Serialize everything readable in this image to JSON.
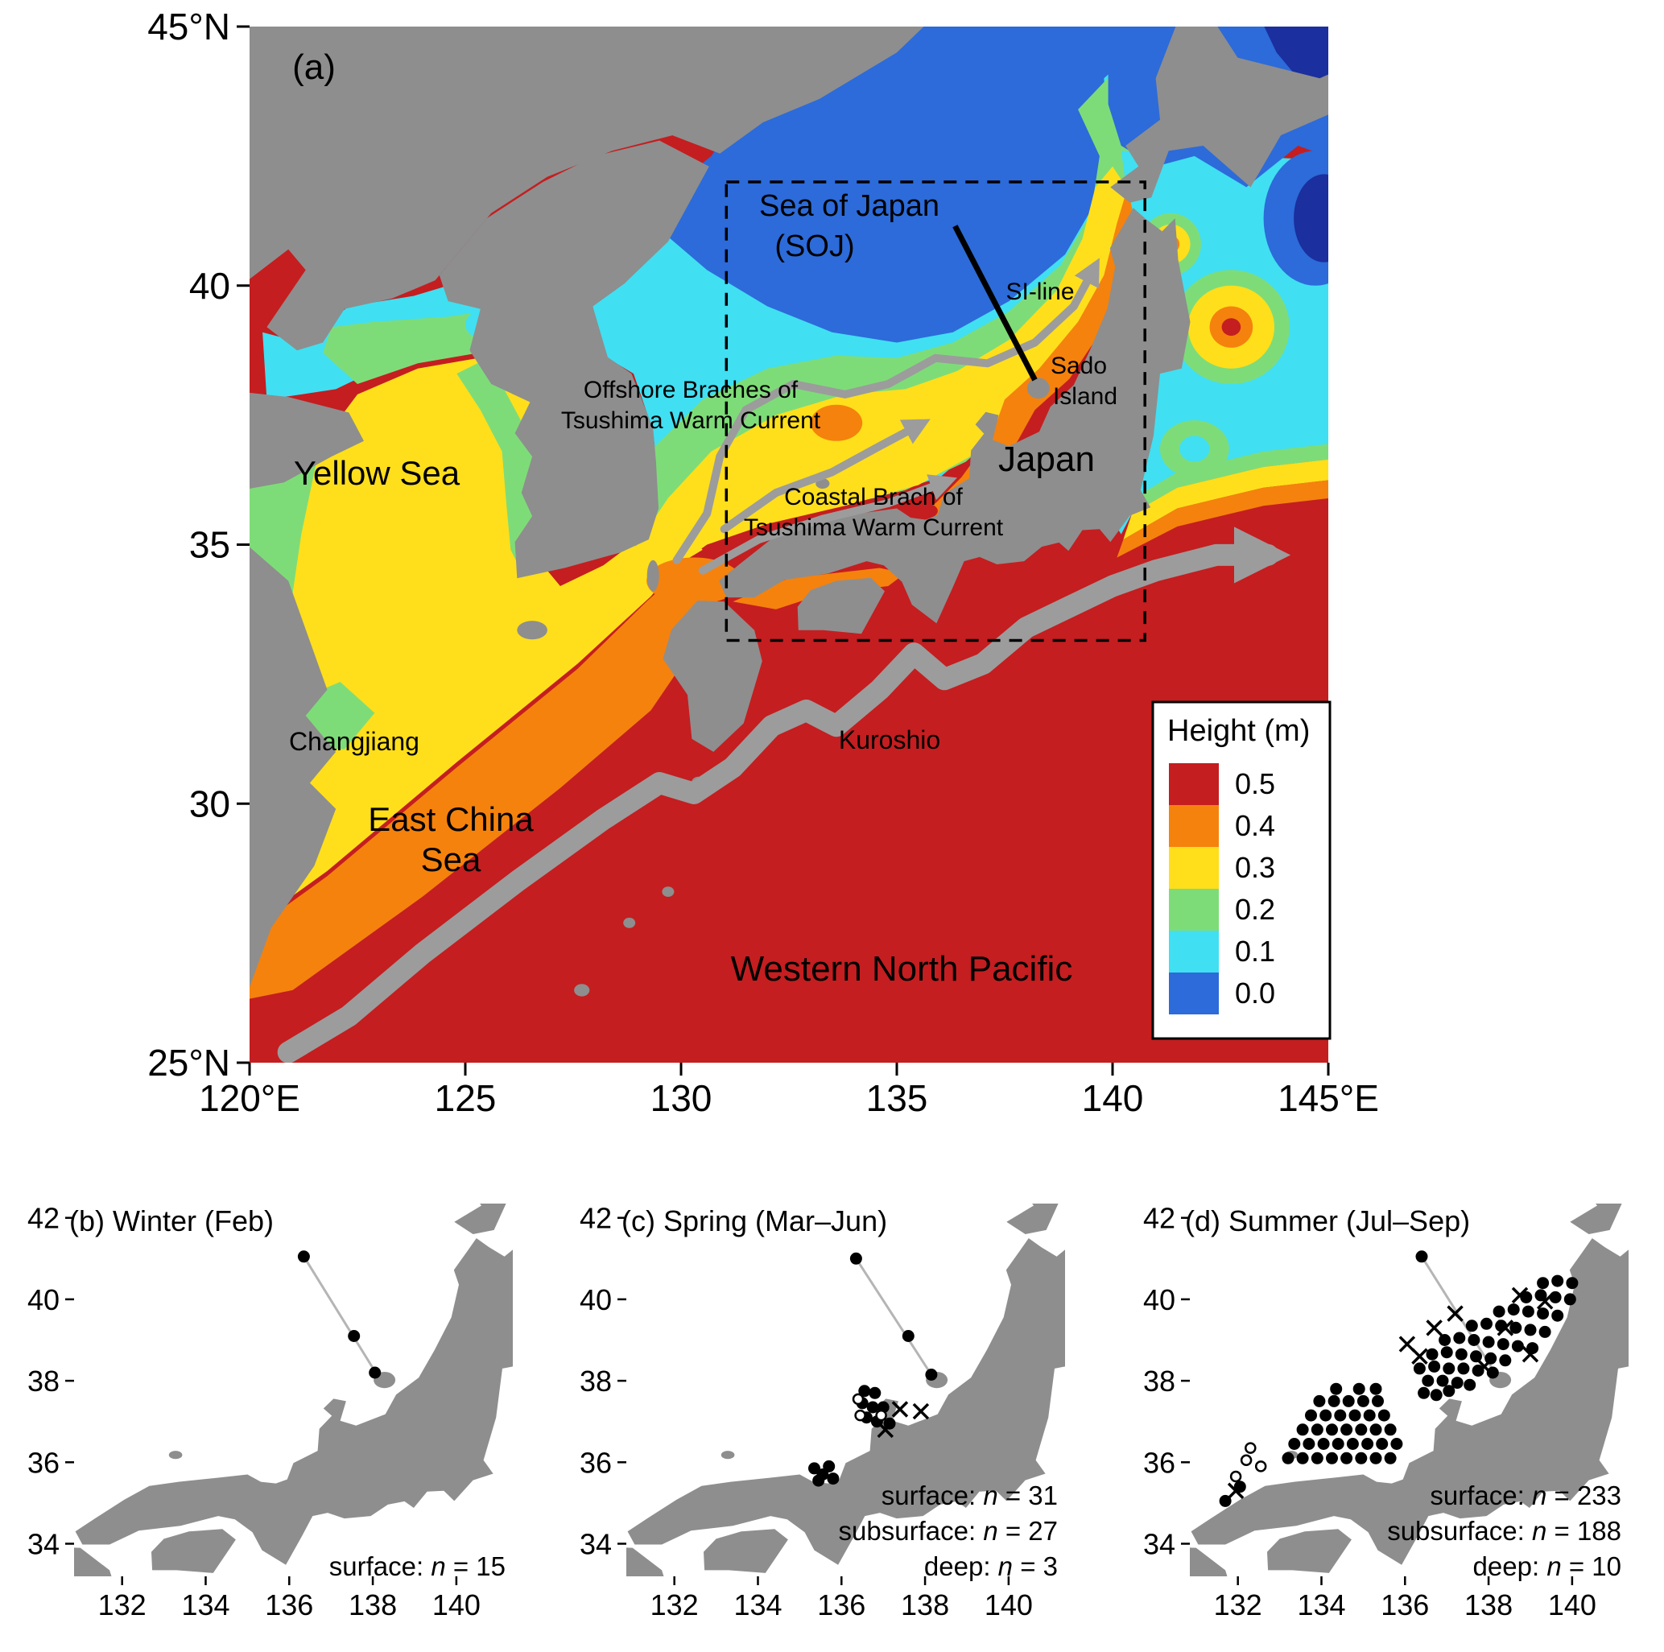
{
  "figure_type": "Oceanographic map figure: sea surface height and sampling stations around Japan",
  "panel_a": {
    "label": "(a)",
    "x_ticks": [
      "120°E",
      "125",
      "130",
      "135",
      "140",
      "145°E"
    ],
    "y_ticks": [
      "45°N",
      "40",
      "35",
      "30",
      "25°N"
    ],
    "annotations": {
      "sea_of_japan_line1": "Sea of Japan",
      "sea_of_japan_line2": "(SOJ)",
      "si_line": "SI-line",
      "sado_line1": "Sado",
      "sado_line2": "Island",
      "japan": "Japan",
      "offshore_line1": "Offshore Braches of",
      "offshore_line2": "Tsushima Warm Current",
      "coastal_line1": "Coastal Brach of",
      "coastal_line2": "Tsushima Warm Current",
      "yellow_sea": "Yellow Sea",
      "changjiang": "Changjiang",
      "east_china_line1": "East China",
      "east_china_line2": "Sea",
      "kuroshio": "Kuroshio",
      "western_north_pacific": "Western North Pacific"
    },
    "legend": {
      "title": "Height (m)",
      "entries": [
        {
          "label": "0.5",
          "color": "#C41E20"
        },
        {
          "label": "0.4",
          "color": "#F5820D"
        },
        {
          "label": "0.3",
          "color": "#FFDF1B"
        },
        {
          "label": "0.2",
          "color": "#7EDC78"
        },
        {
          "label": "0.1",
          "color": "#41DFF2"
        },
        {
          "label": "0.0",
          "color": "#2C6BD9"
        }
      ]
    }
  },
  "colors": {
    "land": "#8E8E8E",
    "current": "#9C9C9C",
    "deep_blue": "#1B2F9E"
  },
  "symbols": {
    "n": "n"
  },
  "panels_small": [
    {
      "id": "b",
      "title": "(b) Winter (Feb)",
      "stats": [
        {
          "label": "surface:",
          "value": "= 15"
        }
      ]
    },
    {
      "id": "c",
      "title": "(c) Spring (Mar–Jun)",
      "stats": [
        {
          "label": "surface:",
          "value": "= 31"
        },
        {
          "label": "subsurface:",
          "value": "= 27"
        },
        {
          "label": "deep:",
          "value": "= 3"
        }
      ]
    },
    {
      "id": "d",
      "title": "(d) Summer (Jul–Sep)",
      "stats": [
        {
          "label": "surface:",
          "value": "= 233"
        },
        {
          "label": "subsurface:",
          "value": "= 188"
        },
        {
          "label": "deep:",
          "value": "= 10"
        }
      ]
    }
  ],
  "chart_data": [
    {
      "panel": "a",
      "type": "heatmap",
      "title": "Mean sea surface height around Japan",
      "variable": "Height (m)",
      "lon_range": [
        120,
        145
      ],
      "lat_range": [
        25,
        45
      ],
      "lon_ticks": [
        120,
        125,
        130,
        135,
        140,
        145
      ],
      "lat_ticks": [
        45,
        40,
        35,
        30,
        25
      ],
      "colorbar": {
        "title": "Height (m)",
        "levels": [
          0.5,
          0.4,
          0.3,
          0.2,
          0.1,
          0.0
        ]
      },
      "regions": [
        "Sea of Japan (SOJ)",
        "Yellow Sea",
        "East China Sea",
        "Western North Pacific"
      ],
      "currents": [
        "Kuroshio",
        "Offshore Braches of Tsushima Warm Current",
        "Coastal Brach of Tsushima Warm Current"
      ],
      "marks": [
        "SI-line transect",
        "Sado Island",
        "Japan",
        "Changjiang",
        "dashed study-area box 131-141E 33-42N"
      ]
    },
    {
      "panel": "b",
      "type": "scatter",
      "season": "Winter (Feb)",
      "counts": {
        "surface": 15
      },
      "x_ticks": [
        132,
        134,
        136,
        138,
        140
      ],
      "y_ticks": [
        42,
        40,
        38,
        36,
        34
      ],
      "transect": [
        [
          136.35,
          41.05
        ],
        [
          138.1,
          38.15
        ]
      ],
      "stations": {
        "surface": [
          [
            136.35,
            41.05
          ],
          [
            137.55,
            39.1
          ],
          [
            138.05,
            38.2
          ]
        ],
        "subsurface": [],
        "deep": []
      }
    },
    {
      "panel": "c",
      "type": "scatter",
      "season": "Spring (Mar–Jun)",
      "counts": {
        "surface": 31,
        "subsurface": 27,
        "deep": 3
      },
      "x_ticks": [
        132,
        134,
        136,
        138,
        140
      ],
      "y_ticks": [
        42,
        40,
        38,
        36,
        34
      ],
      "transect": [
        [
          136.35,
          41.0
        ],
        [
          138.15,
          38.15
        ]
      ],
      "stations": {
        "surface": [
          [
            136.35,
            41.0
          ],
          [
            137.6,
            39.1
          ],
          [
            138.15,
            38.15
          ],
          [
            136.55,
            37.75
          ],
          [
            136.8,
            37.7
          ],
          [
            136.5,
            37.45
          ],
          [
            136.75,
            37.35
          ],
          [
            137.0,
            37.35
          ],
          [
            136.6,
            37.1
          ],
          [
            136.85,
            37.0
          ],
          [
            137.15,
            36.95
          ],
          [
            135.35,
            35.85
          ],
          [
            135.55,
            35.7
          ],
          [
            135.7,
            35.9
          ],
          [
            135.8,
            35.6
          ],
          [
            135.45,
            35.55
          ]
        ],
        "subsurface": [
          [
            136.4,
            37.55
          ],
          [
            136.45,
            37.15
          ],
          [
            136.95,
            37.15
          ]
        ],
        "deep": [
          [
            137.4,
            37.3
          ],
          [
            137.9,
            37.25
          ],
          [
            137.05,
            36.8
          ]
        ]
      }
    },
    {
      "panel": "d",
      "type": "scatter",
      "season": "Summer (Jul–Sep)",
      "counts": {
        "surface": 233,
        "subsurface": 188,
        "deep": 10
      },
      "x_ticks": [
        132,
        134,
        136,
        138,
        140
      ],
      "y_ticks": [
        42,
        40,
        38,
        36,
        34
      ],
      "transect": [
        [
          136.4,
          41.05
        ],
        [
          138.15,
          38.2
        ]
      ],
      "stations": {
        "surface": [
          [
            133.2,
            36.1
          ],
          [
            133.55,
            36.1
          ],
          [
            133.9,
            36.1
          ],
          [
            134.25,
            36.1
          ],
          [
            134.6,
            36.1
          ],
          [
            134.95,
            36.1
          ],
          [
            135.3,
            36.1
          ],
          [
            135.65,
            36.1
          ],
          [
            133.35,
            36.45
          ],
          [
            133.7,
            36.45
          ],
          [
            134.05,
            36.45
          ],
          [
            134.4,
            36.45
          ],
          [
            134.75,
            36.45
          ],
          [
            135.1,
            36.45
          ],
          [
            135.45,
            36.45
          ],
          [
            135.8,
            36.45
          ],
          [
            133.55,
            36.8
          ],
          [
            133.9,
            36.8
          ],
          [
            134.25,
            36.8
          ],
          [
            134.6,
            36.8
          ],
          [
            134.95,
            36.8
          ],
          [
            135.3,
            36.8
          ],
          [
            135.65,
            36.8
          ],
          [
            133.75,
            37.15
          ],
          [
            134.1,
            37.15
          ],
          [
            134.45,
            37.15
          ],
          [
            134.8,
            37.15
          ],
          [
            135.15,
            37.15
          ],
          [
            135.5,
            37.15
          ],
          [
            133.95,
            37.5
          ],
          [
            134.3,
            37.5
          ],
          [
            134.65,
            37.5
          ],
          [
            135.0,
            37.5
          ],
          [
            135.35,
            37.5
          ],
          [
            134.35,
            37.8
          ],
          [
            134.9,
            37.8
          ],
          [
            135.3,
            37.8
          ],
          [
            136.45,
            37.7
          ],
          [
            136.75,
            37.65
          ],
          [
            137.05,
            37.75
          ],
          [
            136.55,
            38.0
          ],
          [
            136.9,
            38.0
          ],
          [
            137.25,
            37.95
          ],
          [
            137.55,
            37.9
          ],
          [
            136.35,
            38.3
          ],
          [
            136.7,
            38.35
          ],
          [
            137.05,
            38.3
          ],
          [
            137.4,
            38.3
          ],
          [
            137.75,
            38.25
          ],
          [
            138.1,
            38.2
          ],
          [
            136.65,
            38.65
          ],
          [
            137.0,
            38.7
          ],
          [
            137.35,
            38.65
          ],
          [
            137.7,
            38.6
          ],
          [
            138.05,
            38.55
          ],
          [
            138.4,
            38.5
          ],
          [
            136.95,
            39.0
          ],
          [
            137.3,
            39.05
          ],
          [
            137.65,
            39.0
          ],
          [
            138.0,
            38.95
          ],
          [
            138.35,
            38.9
          ],
          [
            138.7,
            38.85
          ],
          [
            139.05,
            38.8
          ],
          [
            137.6,
            39.35
          ],
          [
            137.95,
            39.4
          ],
          [
            138.3,
            39.35
          ],
          [
            138.65,
            39.3
          ],
          [
            139.0,
            39.25
          ],
          [
            139.35,
            39.2
          ],
          [
            138.25,
            39.7
          ],
          [
            138.6,
            39.75
          ],
          [
            138.95,
            39.7
          ],
          [
            139.3,
            39.65
          ],
          [
            139.65,
            39.6
          ],
          [
            138.9,
            40.05
          ],
          [
            139.25,
            40.1
          ],
          [
            139.6,
            40.05
          ],
          [
            139.95,
            40.0
          ],
          [
            139.3,
            40.4
          ],
          [
            139.65,
            40.45
          ],
          [
            140.0,
            40.4
          ],
          [
            136.4,
            41.05
          ],
          [
            131.7,
            35.05
          ],
          [
            132.05,
            35.4
          ]
        ],
        "subsurface": [
          [
            132.3,
            36.35
          ],
          [
            132.2,
            36.05
          ],
          [
            132.55,
            35.9
          ],
          [
            131.95,
            35.65
          ]
        ],
        "deep": [
          [
            131.95,
            35.3
          ],
          [
            136.05,
            38.9
          ],
          [
            136.35,
            38.6
          ],
          [
            137.2,
            39.65
          ],
          [
            138.4,
            39.3
          ],
          [
            139.0,
            38.65
          ],
          [
            139.35,
            39.95
          ],
          [
            137.9,
            38.35
          ],
          [
            136.7,
            39.3
          ],
          [
            138.75,
            40.1
          ]
        ]
      }
    }
  ]
}
